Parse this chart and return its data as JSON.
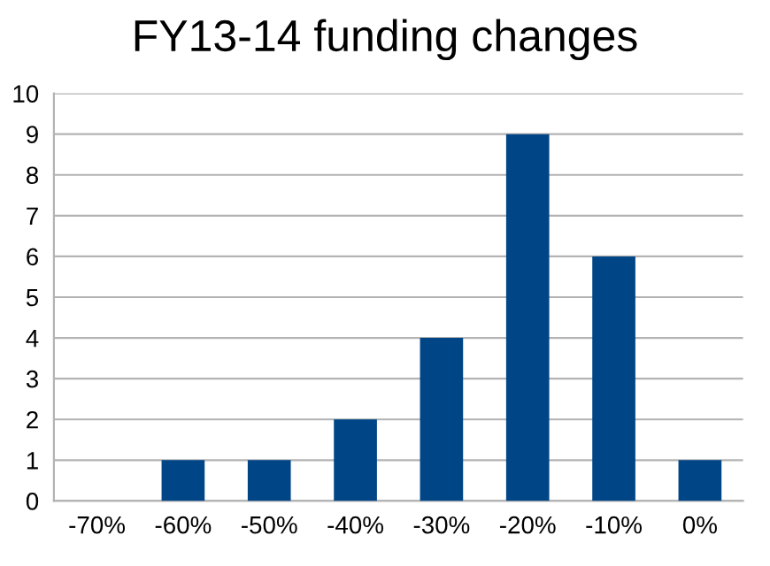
{
  "chart_data": {
    "type": "bar",
    "title": "FY13-14 funding changes",
    "categories": [
      "-70%",
      "-60%",
      "-50%",
      "-40%",
      "-30%",
      "-20%",
      "-10%",
      "0%"
    ],
    "values": [
      0,
      1,
      1,
      2,
      4,
      9,
      6,
      1
    ],
    "color": "#004586",
    "ylim": [
      0,
      10
    ],
    "yticks": [
      0,
      1,
      2,
      3,
      4,
      5,
      6,
      7,
      8,
      9,
      10
    ],
    "grid": "y",
    "legend": false
  }
}
